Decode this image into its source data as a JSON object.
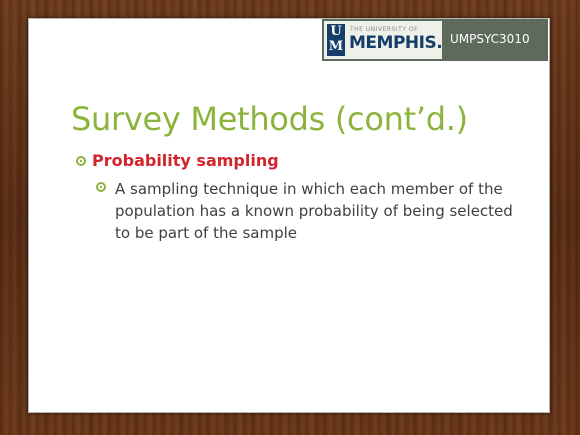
{
  "logo": {
    "mark_top": "U",
    "mark_bottom": "M",
    "small_text": "THE UNIVERSITY OF",
    "name": "MEMPHIS.",
    "course_code": "UMPSYC3010"
  },
  "slide": {
    "title": "Survey Methods (cont’d.)",
    "bullet": "Probability sampling",
    "sub_bullet": "A sampling technique in which each member of the population has a known probability of being selected to be part of the sample"
  },
  "colors": {
    "title": "#8cb43c",
    "bullet_heading": "#d3232b",
    "bullet_icon": "#8cb43c",
    "logo_navy": "#163e6a",
    "header_bar": "#5e6a5c"
  }
}
